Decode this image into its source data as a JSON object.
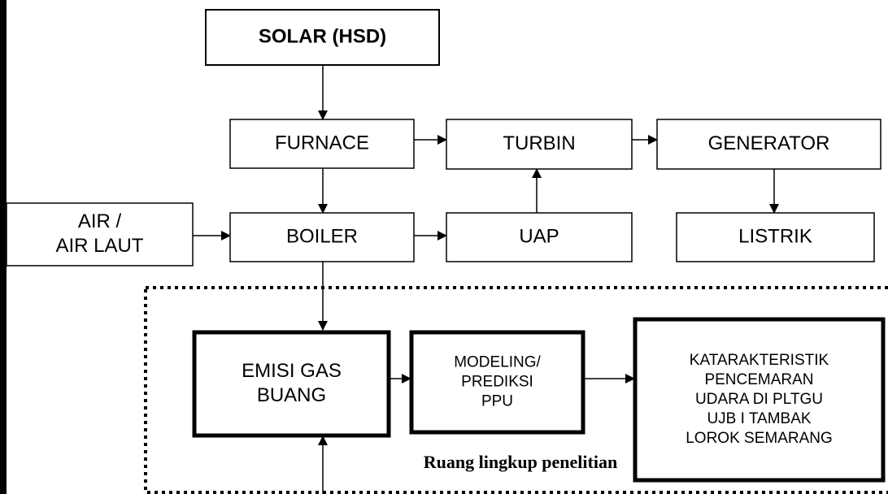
{
  "nodes": [
    {
      "id": "solar",
      "lines": [
        "SOLAR (HSD)"
      ]
    },
    {
      "id": "furnace",
      "lines": [
        "FURNACE"
      ]
    },
    {
      "id": "turbin",
      "lines": [
        "TURBIN"
      ]
    },
    {
      "id": "generator",
      "lines": [
        "GENERATOR"
      ]
    },
    {
      "id": "air",
      "lines": [
        "AIR /",
        "AIR LAUT"
      ]
    },
    {
      "id": "boiler",
      "lines": [
        "BOILER"
      ]
    },
    {
      "id": "uap",
      "lines": [
        "UAP"
      ]
    },
    {
      "id": "listrik",
      "lines": [
        "LISTRIK"
      ]
    },
    {
      "id": "emisi",
      "lines": [
        "EMISI  GAS",
        "BUANG"
      ]
    },
    {
      "id": "modeling",
      "lines": [
        "MODELING/",
        "PREDIKSI",
        "PPU"
      ]
    },
    {
      "id": "karakteristik",
      "lines": [
        "KATARAKTERISTIK",
        "PENCEMARAN",
        "UDARA  DI PLTGU",
        "UJB I TAMBAK",
        "LOROK SEMARANG"
      ]
    }
  ],
  "caption": "Ruang lingkup penelitian"
}
